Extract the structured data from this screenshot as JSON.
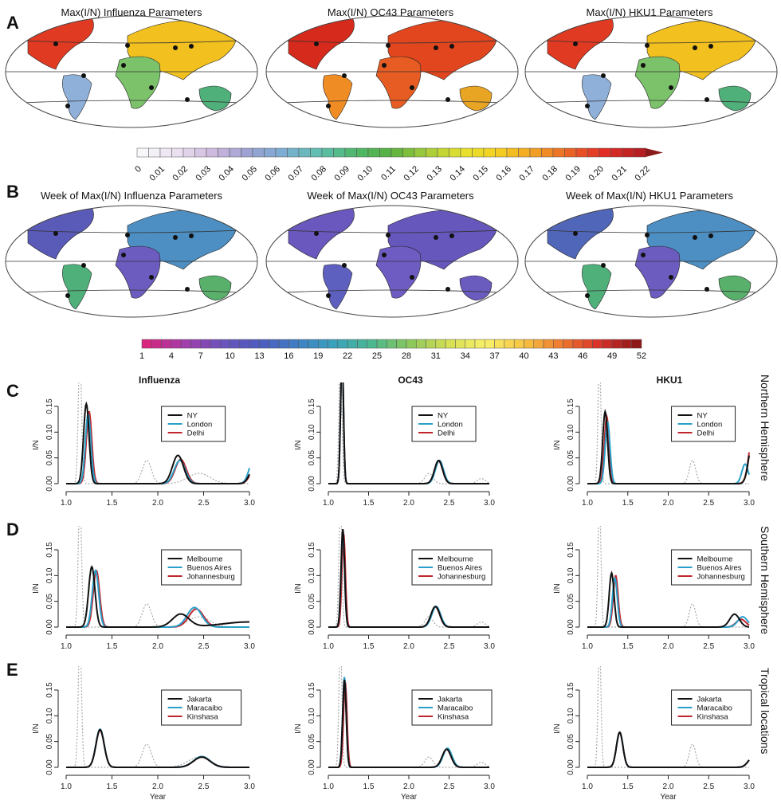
{
  "panels": {
    "a": "A",
    "b": "B",
    "c": "C",
    "d": "D",
    "e": "E"
  },
  "maps_a": {
    "titles": [
      "Max(I/N) Influenza Parameters",
      "Max(I/N) OC43 Parameters",
      "Max(I/N) HKU1 Parameters"
    ],
    "colorbar_ticks": [
      "0",
      "0.01",
      "0.02",
      "0.03",
      "0.04",
      "0.05",
      "0.06",
      "0.07",
      "0.08",
      "0.09",
      "0.10",
      "0.11",
      "0.12",
      "0.13",
      "0.14",
      "0.15",
      "0.16",
      "0.17",
      "0.18",
      "0.19",
      "0.20",
      "0.21",
      "0.22"
    ]
  },
  "maps_b": {
    "titles": [
      "Week of Max(I/N) Influenza Parameters",
      "Week of Max(I/N) OC43 Parameters",
      "Week of Max(I/N) HKU1 Parameters"
    ],
    "colorbar_ticks": [
      "1",
      "4",
      "7",
      "10",
      "13",
      "16",
      "19",
      "22",
      "25",
      "28",
      "31",
      "34",
      "37",
      "40",
      "43",
      "46",
      "49",
      "52"
    ]
  },
  "columns": [
    "Influenza",
    "OC43",
    "HKU1"
  ],
  "rows": [
    "Northern Hemisphere",
    "Southern Hemisphere",
    "Tropical locations"
  ],
  "colors": {
    "black": "#111111",
    "blue": "#2a9fc9",
    "red": "#c0262d",
    "ref": "#aaaaaa"
  },
  "chart_data": {
    "type": "line",
    "xlabel": "Year",
    "ylabel": "I/N",
    "xlim": [
      1.0,
      3.0
    ],
    "ylim": [
      0,
      0.15
    ],
    "xticks": [
      "1.0",
      "1.5",
      "2.0",
      "2.5",
      "3.0"
    ],
    "yticks": [
      "0.00",
      "0.05",
      "0.10",
      "0.15"
    ],
    "legend_position": "top-right",
    "reference_series": {
      "Influenza": [
        [
          1.15,
          0.25,
          0.018
        ],
        [
          1.88,
          0.045,
          0.05
        ],
        [
          2.45,
          0.02,
          0.12
        ]
      ],
      "OC43": [
        [
          1.15,
          0.25,
          0.018
        ],
        [
          2.25,
          0.02,
          0.05
        ],
        [
          2.9,
          0.01,
          0.05
        ]
      ],
      "HKU1": [
        [
          1.15,
          0.25,
          0.018
        ],
        [
          2.3,
          0.045,
          0.04
        ]
      ]
    },
    "panels": [
      {
        "row": 0,
        "col": 0,
        "series": [
          {
            "name": "NY",
            "color": "black",
            "peaks": [
              [
                1.22,
                0.155,
                0.03
              ],
              [
                2.22,
                0.055,
                0.06
              ],
              [
                3.05,
                0.03,
                0.05
              ]
            ]
          },
          {
            "name": "London",
            "color": "blue",
            "peaks": [
              [
                1.24,
                0.135,
                0.03
              ],
              [
                2.24,
                0.045,
                0.06
              ],
              [
                3.05,
                0.05,
                0.05
              ]
            ]
          },
          {
            "name": "Delhi",
            "color": "red",
            "peaks": [
              [
                1.25,
                0.14,
                0.03
              ],
              [
                2.25,
                0.047,
                0.06
              ],
              [
                3.05,
                0.025,
                0.05
              ]
            ]
          }
        ]
      },
      {
        "row": 0,
        "col": 1,
        "series": [
          {
            "name": "NY",
            "color": "black",
            "peaks": [
              [
                1.17,
                0.25,
                0.018
              ],
              [
                2.37,
                0.045,
                0.05
              ]
            ]
          },
          {
            "name": "London",
            "color": "blue",
            "peaks": [
              [
                1.17,
                0.25,
                0.018
              ],
              [
                2.38,
                0.045,
                0.05
              ]
            ]
          },
          {
            "name": "Delhi",
            "color": "red",
            "peaks": [
              [
                1.17,
                0.25,
                0.018
              ],
              [
                2.37,
                0.044,
                0.05
              ]
            ]
          }
        ]
      },
      {
        "row": 0,
        "col": 2,
        "series": [
          {
            "name": "NY",
            "color": "black",
            "peaks": [
              [
                1.22,
                0.14,
                0.03
              ],
              [
                3.05,
                0.09,
                0.05
              ]
            ]
          },
          {
            "name": "London",
            "color": "blue",
            "peaks": [
              [
                1.25,
                0.12,
                0.03
              ],
              [
                2.95,
                0.038,
                0.04
              ]
            ]
          },
          {
            "name": "Delhi",
            "color": "red",
            "peaks": [
              [
                1.24,
                0.13,
                0.03
              ],
              [
                3.05,
                0.1,
                0.05
              ]
            ]
          }
        ]
      },
      {
        "row": 1,
        "col": 0,
        "series": [
          {
            "name": "Melbourne",
            "color": "black",
            "peaks": [
              [
                1.28,
                0.117,
                0.035
              ],
              [
                2.25,
                0.025,
                0.09
              ],
              [
                3.0,
                0.01,
                0.3
              ]
            ]
          },
          {
            "name": "Buenos Aires",
            "color": "blue",
            "peaks": [
              [
                1.32,
                0.11,
                0.035
              ],
              [
                2.4,
                0.038,
                0.08
              ]
            ]
          },
          {
            "name": "Johannesburg",
            "color": "red",
            "peaks": [
              [
                1.33,
                0.11,
                0.035
              ],
              [
                2.42,
                0.035,
                0.08
              ]
            ]
          }
        ]
      },
      {
        "row": 1,
        "col": 1,
        "series": [
          {
            "name": "Melbourne",
            "color": "black",
            "peaks": [
              [
                1.18,
                0.19,
                0.022
              ],
              [
                2.33,
                0.04,
                0.055
              ]
            ]
          },
          {
            "name": "Buenos Aires",
            "color": "blue",
            "peaks": [
              [
                1.18,
                0.18,
                0.022
              ],
              [
                2.34,
                0.04,
                0.055
              ]
            ]
          },
          {
            "name": "Johannesburg",
            "color": "red",
            "peaks": [
              [
                1.19,
                0.18,
                0.022
              ],
              [
                2.33,
                0.039,
                0.055
              ]
            ]
          }
        ]
      },
      {
        "row": 1,
        "col": 2,
        "series": [
          {
            "name": "Melbourne",
            "color": "black",
            "peaks": [
              [
                1.3,
                0.105,
                0.03
              ],
              [
                2.82,
                0.025,
                0.06
              ]
            ]
          },
          {
            "name": "Buenos Aires",
            "color": "blue",
            "peaks": [
              [
                1.34,
                0.095,
                0.03
              ],
              [
                2.92,
                0.02,
                0.06
              ]
            ]
          },
          {
            "name": "Johannesburg",
            "color": "red",
            "peaks": [
              [
                1.35,
                0.1,
                0.03
              ],
              [
                2.9,
                0.015,
                0.06
              ]
            ]
          }
        ]
      },
      {
        "row": 2,
        "col": 0,
        "series": [
          {
            "name": "Jakarta",
            "color": "black",
            "peaks": [
              [
                1.37,
                0.073,
                0.045
              ],
              [
                2.48,
                0.02,
                0.09
              ]
            ]
          },
          {
            "name": "Maracaibo",
            "color": "blue",
            "peaks": [
              [
                1.37,
                0.074,
                0.045
              ],
              [
                2.48,
                0.021,
                0.09
              ]
            ]
          },
          {
            "name": "Kinshasa",
            "color": "red",
            "peaks": [
              [
                1.37,
                0.072,
                0.045
              ],
              [
                2.48,
                0.02,
                0.09
              ]
            ]
          }
        ]
      },
      {
        "row": 2,
        "col": 1,
        "series": [
          {
            "name": "Jakarta",
            "color": "black",
            "peaks": [
              [
                1.2,
                0.17,
                0.022
              ],
              [
                2.47,
                0.035,
                0.055
              ]
            ]
          },
          {
            "name": "Maracaibo",
            "color": "blue",
            "peaks": [
              [
                1.2,
                0.175,
                0.022
              ],
              [
                2.48,
                0.037,
                0.055
              ]
            ]
          },
          {
            "name": "Kinshasa",
            "color": "red",
            "peaks": [
              [
                1.21,
                0.165,
                0.022
              ],
              [
                2.47,
                0.035,
                0.055
              ]
            ]
          }
        ]
      },
      {
        "row": 2,
        "col": 2,
        "series": [
          {
            "name": "Jakarta",
            "color": "black",
            "peaks": [
              [
                1.4,
                0.068,
                0.04
              ],
              [
                3.05,
                0.02,
                0.06
              ]
            ]
          },
          {
            "name": "Maracaibo",
            "color": "blue",
            "peaks": [
              [
                1.4,
                0.068,
                0.04
              ],
              [
                3.05,
                0.02,
                0.06
              ]
            ]
          },
          {
            "name": "Kinshasa",
            "color": "red",
            "peaks": [
              [
                1.4,
                0.067,
                0.04
              ],
              [
                3.05,
                0.02,
                0.06
              ]
            ]
          }
        ]
      }
    ]
  }
}
